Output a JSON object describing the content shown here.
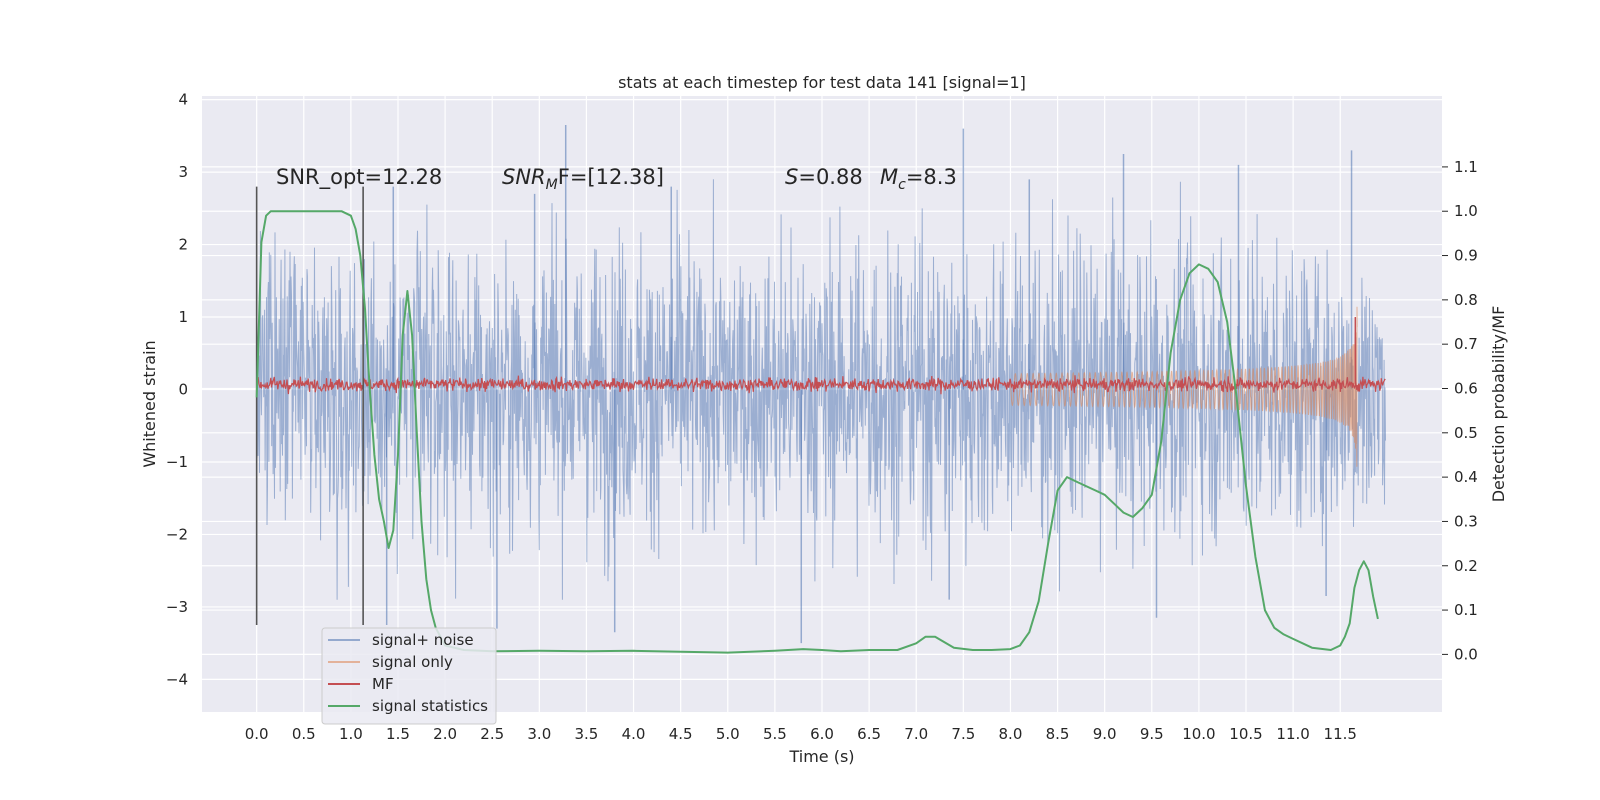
{
  "chart_data": {
    "type": "line",
    "title": "stats at each timestep for test data 141 [signal=1]",
    "xlabel": "Time (s)",
    "ylabel": "Whitened strain",
    "y2label": "Detection probability/MF",
    "xlim": [
      -0.58,
      12.58
    ],
    "ylim": [
      -4.45,
      4.05
    ],
    "y2lim": [
      -0.13,
      1.26
    ],
    "x_ticks": [
      0.0,
      0.5,
      1.0,
      1.5,
      2.0,
      2.5,
      3.0,
      3.5,
      4.0,
      4.5,
      5.0,
      5.5,
      6.0,
      6.5,
      7.0,
      7.5,
      8.0,
      8.5,
      9.0,
      9.5,
      10.0,
      10.5,
      11.0,
      11.5
    ],
    "x_tick_labels": [
      "0.0",
      "0.5",
      "1.0",
      "1.5",
      "2.0",
      "2.5",
      "3.0",
      "3.5",
      "4.0",
      "4.5",
      "5.0",
      "5.5",
      "6.0",
      "6.5",
      "7.0",
      "7.5",
      "8.0",
      "8.5",
      "9.0",
      "9.5",
      "10.0",
      "10.5",
      "11.0",
      "11.5"
    ],
    "y_ticks": [
      -4,
      -3,
      -2,
      -1,
      0,
      1,
      2,
      3,
      4
    ],
    "y_tick_labels": [
      "−4",
      "−3",
      "−2",
      "−1",
      "0",
      "1",
      "2",
      "3",
      "4"
    ],
    "y2_ticks": [
      0.0,
      0.1,
      0.2,
      0.3,
      0.4,
      0.5,
      0.6,
      0.7,
      0.8,
      0.9,
      1.0,
      1.1
    ],
    "y2_tick_labels": [
      "0.0",
      "0.1",
      "0.2",
      "0.3",
      "0.4",
      "0.5",
      "0.6",
      "0.7",
      "0.8",
      "0.9",
      "1.0",
      "1.1"
    ],
    "grid": true,
    "legend_position": "lower-left",
    "annotations": {
      "snr_opt": "SNR_opt=12.28",
      "snr_mf_italic": "SNR",
      "snr_mf_sub": "M",
      "snr_mf_rest": "F=[12.38]",
      "s_italic": "S",
      "s_rest": "=0.88",
      "mc_italic": "M",
      "mc_sub": "c",
      "mc_rest": "=8.3"
    },
    "window_lines": [
      {
        "x": 0.0,
        "y_range": [
          -3.25,
          2.8
        ]
      },
      {
        "x": 1.13,
        "y_range": [
          -3.25,
          2.8
        ]
      }
    ],
    "series": [
      {
        "name": "signal+ noise",
        "color": "#4c72b0",
        "axis": "left",
        "description_kind": "noise_band",
        "x_range": [
          0.0,
          11.98
        ],
        "envelope_typical": 1.6,
        "peaks": [
          [
            1.45,
            2.8
          ],
          [
            3.28,
            3.65
          ],
          [
            2.95,
            2.7
          ],
          [
            7.5,
            3.6
          ],
          [
            11.62,
            3.3
          ],
          [
            10.42,
            3.1
          ],
          [
            9.2,
            3.25
          ],
          [
            4.4,
            2.8
          ],
          [
            8.2,
            2.9
          ]
        ],
        "troughs": [
          [
            1.38,
            -3.25
          ],
          [
            3.8,
            -3.35
          ],
          [
            5.78,
            -3.5
          ],
          [
            2.55,
            -3.3
          ],
          [
            9.55,
            -3.15
          ],
          [
            7.35,
            -2.9
          ],
          [
            11.35,
            -2.85
          ]
        ]
      },
      {
        "name": "signal only",
        "color": "#dd8452",
        "axis": "left",
        "description_kind": "chirp",
        "x_range": [
          8.0,
          11.68
        ],
        "amplitude_start": 0.05,
        "amplitude_peak": 1.35,
        "peak_x": 11.68
      },
      {
        "name": "MF",
        "color": "#c44e52",
        "axis": "left",
        "description_kind": "band",
        "x_range": [
          0.0,
          11.98
        ],
        "center": 0.07,
        "half_width": 0.1,
        "spike": [
          11.66,
          1.0
        ]
      },
      {
        "name": "signal statistics",
        "color": "#55a868",
        "axis": "right",
        "x": [
          0.0,
          0.05,
          0.1,
          0.15,
          0.2,
          0.3,
          0.5,
          0.7,
          0.9,
          1.0,
          1.05,
          1.1,
          1.15,
          1.2,
          1.25,
          1.3,
          1.35,
          1.4,
          1.45,
          1.5,
          1.55,
          1.6,
          1.65,
          1.7,
          1.75,
          1.8,
          1.85,
          1.9,
          2.0,
          2.2,
          2.5,
          3.0,
          3.5,
          4.0,
          4.5,
          5.0,
          5.5,
          5.8,
          6.0,
          6.2,
          6.5,
          6.8,
          7.0,
          7.1,
          7.2,
          7.4,
          7.6,
          7.8,
          8.0,
          8.1,
          8.2,
          8.3,
          8.4,
          8.5,
          8.6,
          8.7,
          8.8,
          8.9,
          9.0,
          9.1,
          9.2,
          9.3,
          9.4,
          9.5,
          9.6,
          9.7,
          9.8,
          9.9,
          10.0,
          10.1,
          10.2,
          10.3,
          10.4,
          10.5,
          10.6,
          10.7,
          10.8,
          10.9,
          11.0,
          11.2,
          11.4,
          11.5,
          11.55,
          11.6,
          11.65,
          11.7,
          11.75,
          11.8,
          11.85,
          11.9
        ],
        "values": [
          0.58,
          0.93,
          0.99,
          1.0,
          1.0,
          1.0,
          1.0,
          1.0,
          1.0,
          0.99,
          0.96,
          0.9,
          0.78,
          0.6,
          0.45,
          0.35,
          0.3,
          0.24,
          0.28,
          0.45,
          0.72,
          0.82,
          0.72,
          0.5,
          0.3,
          0.17,
          0.1,
          0.06,
          0.02,
          0.01,
          0.007,
          0.008,
          0.007,
          0.008,
          0.006,
          0.004,
          0.008,
          0.012,
          0.01,
          0.007,
          0.01,
          0.01,
          0.025,
          0.04,
          0.04,
          0.015,
          0.01,
          0.01,
          0.012,
          0.02,
          0.05,
          0.12,
          0.25,
          0.37,
          0.4,
          0.39,
          0.38,
          0.37,
          0.36,
          0.34,
          0.32,
          0.31,
          0.33,
          0.36,
          0.48,
          0.68,
          0.8,
          0.86,
          0.88,
          0.87,
          0.84,
          0.75,
          0.58,
          0.38,
          0.22,
          0.1,
          0.06,
          0.045,
          0.035,
          0.015,
          0.01,
          0.02,
          0.04,
          0.07,
          0.15,
          0.19,
          0.21,
          0.19,
          0.13,
          0.08
        ]
      }
    ]
  }
}
